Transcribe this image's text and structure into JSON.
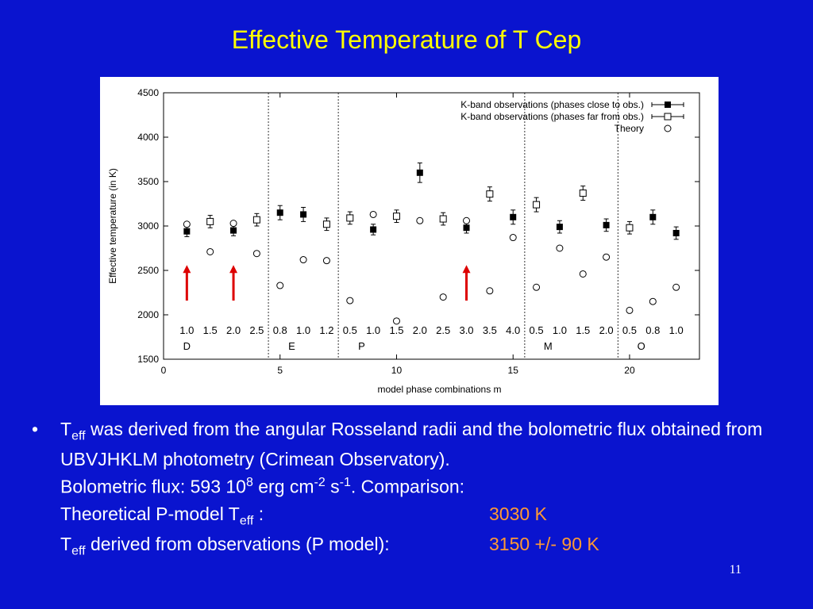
{
  "slide": {
    "title": "Effective Temperature of T Cep",
    "page_number": "11"
  },
  "text": {
    "bullet_mark": "•",
    "teff_T": "T",
    "teff_sub": "eff",
    "line1_rest": " was derived from the angular Rosseland radii and the bolometric flux obtained from UBVJHKLM photometry (Crimean Observatory).",
    "flux_prefix": "Bolometric flux: 593 10",
    "flux_exp8": "8",
    "flux_mid1": "  erg cm",
    "flux_exp_m2": "-2",
    "flux_mid2": " s",
    "flux_exp_m1": "-1",
    "flux_suffix": ". Comparison:",
    "theory_prefix": "Theoretical P-model T",
    "theory_colon": " :",
    "theory_value": "3030 K",
    "obs_rest": " derived from observations (P model):",
    "obs_value": "3150 +/- 90  K"
  },
  "colors": {
    "background": "#0a14cf",
    "title": "#ffff00",
    "highlight": "#ff9933",
    "arrow": "#dd0000"
  },
  "chart_data": {
    "type": "scatter",
    "xlabel": "model phase combinations m",
    "ylabel": "Effective temperature (in K)",
    "xlim": [
      0,
      23
    ],
    "ylim": [
      1500,
      4500
    ],
    "x_ticks": [
      0,
      5,
      10,
      15,
      20
    ],
    "y_ticks": [
      1500,
      2000,
      2500,
      3000,
      3500,
      4000,
      4500
    ],
    "legend_position": "top-right",
    "series": [
      {
        "name": "K-band observations (phases close to obs.)",
        "marker": "filled-square",
        "points": [
          {
            "x": 1,
            "y": 2940,
            "err": 60
          },
          {
            "x": 3,
            "y": 2950,
            "err": 60
          },
          {
            "x": 5,
            "y": 3150,
            "err": 80
          },
          {
            "x": 6,
            "y": 3130,
            "err": 80
          },
          {
            "x": 9,
            "y": 2960,
            "err": 60
          },
          {
            "x": 11,
            "y": 3600,
            "err": 110
          },
          {
            "x": 13,
            "y": 2980,
            "err": 60
          },
          {
            "x": 15,
            "y": 3100,
            "err": 80
          },
          {
            "x": 17,
            "y": 2990,
            "err": 70
          },
          {
            "x": 19,
            "y": 3010,
            "err": 70
          },
          {
            "x": 21,
            "y": 3100,
            "err": 80
          },
          {
            "x": 22,
            "y": 2920,
            "err": 70
          }
        ]
      },
      {
        "name": "K-band observations (phases far from obs.)",
        "marker": "open-square",
        "points": [
          {
            "x": 2,
            "y": 3050,
            "err": 70
          },
          {
            "x": 4,
            "y": 3070,
            "err": 70
          },
          {
            "x": 7,
            "y": 3020,
            "err": 70
          },
          {
            "x": 8,
            "y": 3090,
            "err": 70
          },
          {
            "x": 10,
            "y": 3110,
            "err": 70
          },
          {
            "x": 12,
            "y": 3080,
            "err": 70
          },
          {
            "x": 14,
            "y": 3360,
            "err": 80
          },
          {
            "x": 16,
            "y": 3240,
            "err": 80
          },
          {
            "x": 18,
            "y": 3370,
            "err": 80
          },
          {
            "x": 20,
            "y": 2980,
            "err": 70
          }
        ]
      },
      {
        "name": "Theory",
        "marker": "open-circle",
        "points": [
          {
            "x": 1,
            "y": 3020
          },
          {
            "x": 2,
            "y": 2710
          },
          {
            "x": 3,
            "y": 3030
          },
          {
            "x": 4,
            "y": 2690
          },
          {
            "x": 5,
            "y": 2330
          },
          {
            "x": 6,
            "y": 2620
          },
          {
            "x": 7,
            "y": 2610
          },
          {
            "x": 8,
            "y": 2160
          },
          {
            "x": 9,
            "y": 3130
          },
          {
            "x": 10,
            "y": 1930
          },
          {
            "x": 11,
            "y": 3060
          },
          {
            "x": 12,
            "y": 2200
          },
          {
            "x": 13,
            "y": 3060
          },
          {
            "x": 14,
            "y": 2270
          },
          {
            "x": 15,
            "y": 2870
          },
          {
            "x": 16,
            "y": 2310
          },
          {
            "x": 17,
            "y": 2750
          },
          {
            "x": 18,
            "y": 2460
          },
          {
            "x": 19,
            "y": 2650
          },
          {
            "x": 20,
            "y": 2050
          },
          {
            "x": 21,
            "y": 2150
          },
          {
            "x": 22,
            "y": 2310
          }
        ]
      }
    ],
    "phase_labels": [
      {
        "x": 1,
        "label": "1.0"
      },
      {
        "x": 2,
        "label": "1.5"
      },
      {
        "x": 3,
        "label": "2.0"
      },
      {
        "x": 4,
        "label": "2.5"
      },
      {
        "x": 5,
        "label": "0.8"
      },
      {
        "x": 6,
        "label": "1.0"
      },
      {
        "x": 7,
        "label": "1.2"
      },
      {
        "x": 8,
        "label": "0.5"
      },
      {
        "x": 9,
        "label": "1.0"
      },
      {
        "x": 10,
        "label": "1.5"
      },
      {
        "x": 11,
        "label": "2.0"
      },
      {
        "x": 12,
        "label": "2.5"
      },
      {
        "x": 13,
        "label": "3.0"
      },
      {
        "x": 14,
        "label": "3.5"
      },
      {
        "x": 15,
        "label": "4.0"
      },
      {
        "x": 16,
        "label": "0.5"
      },
      {
        "x": 17,
        "label": "1.0"
      },
      {
        "x": 18,
        "label": "1.5"
      },
      {
        "x": 19,
        "label": "2.0"
      },
      {
        "x": 20,
        "label": "0.5"
      },
      {
        "x": 21,
        "label": "0.8"
      },
      {
        "x": 22,
        "label": "1.0"
      }
    ],
    "phase_label_y": 1830,
    "model_labels": [
      {
        "x": 1,
        "label": "D"
      },
      {
        "x": 5.5,
        "label": "E"
      },
      {
        "x": 8.5,
        "label": "P"
      },
      {
        "x": 16.5,
        "label": "M"
      },
      {
        "x": 20.5,
        "label": "O"
      }
    ],
    "model_label_y": 1650,
    "dividers": [
      4.5,
      7.5,
      15.5,
      19.5
    ],
    "arrows": [
      {
        "x": 1,
        "y_from": 2160,
        "y_to": 2560
      },
      {
        "x": 3,
        "y_from": 2160,
        "y_to": 2560
      },
      {
        "x": 13,
        "y_from": 2160,
        "y_to": 2560
      }
    ]
  }
}
